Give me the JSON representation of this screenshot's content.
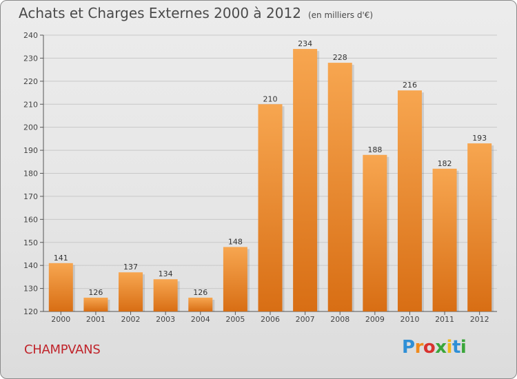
{
  "header": {
    "title": "Achats et Charges Externes 2000 à 2012",
    "subtitle": "(en milliers d'€)"
  },
  "footer": {
    "commune": "CHAMPVANS",
    "logo": [
      "P",
      "r",
      "o",
      "x",
      "i",
      "t",
      "i"
    ]
  },
  "colors": {
    "bar_top": "#f7a650",
    "bar_bottom": "#d86e14",
    "title": "#4a4a4a",
    "commune": "#c0242b"
  },
  "chart_data": {
    "type": "bar",
    "title": "Achats et Charges Externes 2000 à 2012",
    "subtitle": "(en milliers d'€)",
    "xlabel": "",
    "ylabel": "",
    "categories": [
      "2000",
      "2001",
      "2002",
      "2003",
      "2004",
      "2005",
      "2006",
      "2007",
      "2008",
      "2009",
      "2010",
      "2011",
      "2012"
    ],
    "values": [
      141,
      126,
      137,
      134,
      126,
      148,
      210,
      234,
      228,
      188,
      216,
      182,
      193
    ],
    "ylim": [
      120,
      240
    ],
    "yticks": [
      120,
      130,
      140,
      150,
      160,
      170,
      180,
      190,
      200,
      210,
      220,
      230,
      240
    ],
    "grid": true,
    "legend": "none",
    "data_labels": true
  }
}
